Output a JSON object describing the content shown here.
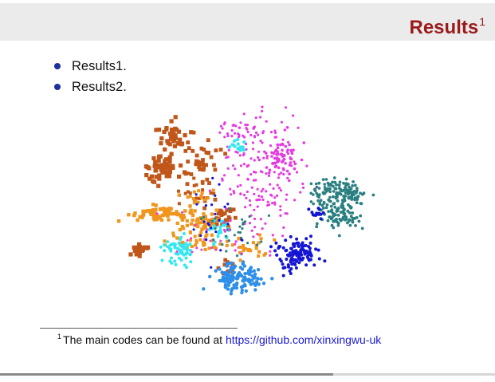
{
  "slide": {
    "title": "Results",
    "title_footnote_mark": "1",
    "bullets": [
      "Results1.",
      "Results2."
    ]
  },
  "footnote": {
    "mark": "1",
    "text": "The main codes can be found at ",
    "link": "https://github.com/xinxingwu-uk"
  },
  "colors": {
    "title": "#9b1b1b",
    "header_bg": "#ebebeb",
    "bullet": "#1e2f9e",
    "link": "#1818d6"
  },
  "chart_data": {
    "type": "scatter",
    "description": "t-SNE style cluster embedding (no axes)",
    "clusters": [
      {
        "name": "brown",
        "color": "#c0561a"
      },
      {
        "name": "magenta",
        "color": "#e63be0"
      },
      {
        "name": "teal",
        "color": "#2a7f80"
      },
      {
        "name": "blue",
        "color": "#1414d4"
      },
      {
        "name": "azure",
        "color": "#2f8fe8"
      },
      {
        "name": "orange",
        "color": "#f0961e"
      },
      {
        "name": "cyan",
        "color": "#32e8f0"
      }
    ]
  }
}
